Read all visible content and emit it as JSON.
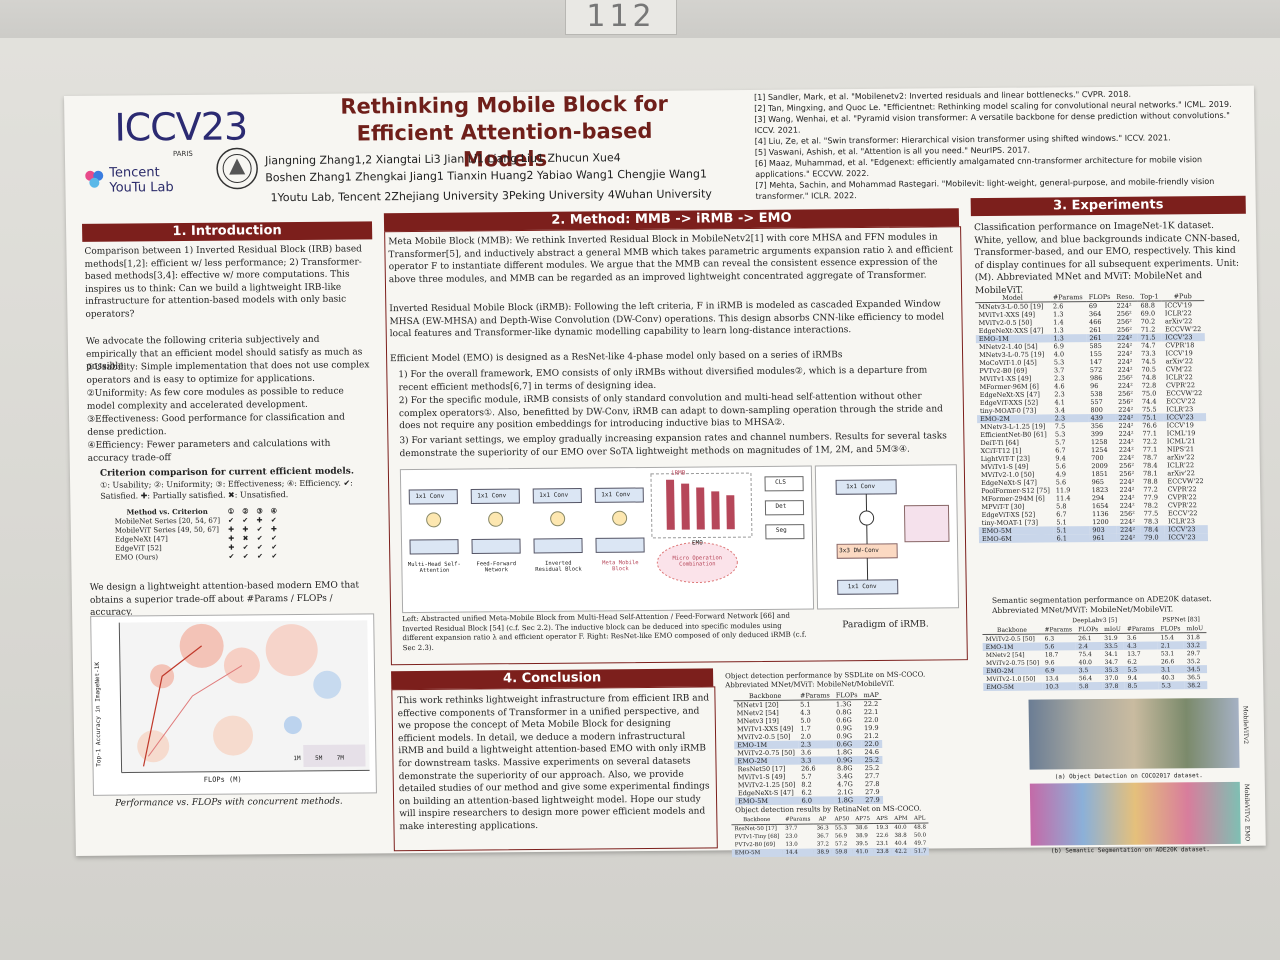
{
  "header": {
    "conference": "ICCV23",
    "city": "PARIS",
    "org_logo": "Tencent YouTu Lab",
    "title_line1": "Rethinking Mobile Block for",
    "title_line2": "Efficient Attention-based Models",
    "authors_line1": "Jiangning Zhang1,2   Xiangtai Li3   Jian Li1   Liang Liu1   Zhucun Xue4",
    "authors_line2": "Boshen Zhang1   Zhengkai Jiang1   Tianxin Huang2   Yabiao Wang1   Chengjie Wang1",
    "affiliations": "1Youtu Lab, Tencent   2Zhejiang University   3Peking University   4Wuhan University",
    "references": [
      "[1] Sandler, Mark, et al. \"Mobilenetv2: Inverted residuals and linear bottlenecks.\" CVPR. 2018.",
      "[2] Tan, Mingxing, and Quoc Le. \"Efficientnet: Rethinking model scaling for convolutional neural networks.\" ICML. 2019.",
      "[3] Wang, Wenhai, et al. \"Pyramid vision transformer: A versatile backbone for dense prediction without convolutions.\" ICCV. 2021.",
      "[4] Liu, Ze, et al. \"Swin transformer: Hierarchical vision transformer using shifted windows.\" ICCV. 2021.",
      "[5] Vaswani, Ashish, et al. \"Attention is all you need.\" NeurIPS. 2017.",
      "[6] Maaz, Muhammad, et al. \"Edgenext: efficiently amalgamated cnn-transformer architecture for mobile vision applications.\" ECCVW. 2022.",
      "[7] Mehta, Sachin, and Mohammad Rastegari. \"Mobilevit: light-weight, general-purpose, and mobile-friendly vision transformer.\" ICLR. 2022."
    ]
  },
  "booth_number": "112",
  "intro": {
    "heading": "1. Introduction",
    "p1": "Comparison between 1) Inverted Residual Block (IRB) based methods[1,2]: efficient w/ less performance; 2) Transformer-based methods[3,4]: effective w/ more computations. This inspires us to think: Can we build a lightweight IRB-like infrastructure for attention-based models with only basic operators?",
    "p2": "We advocate the following criteria subjectively and empirically that an efficient model should satisfy as much as possible:",
    "c1": "①Usability: Simple implementation that does not use complex operators and is easy to optimize for applications.",
    "c2": "②Uniformity: As few core modules as possible to reduce model complexity and accelerated development.",
    "c3": "③Effectiveness: Good performance for classification and dense prediction.",
    "c4": "④Efficiency: Fewer parameters and calculations with accuracy trade-off",
    "crit_title": "Criterion comparison for current efficient models.",
    "crit_legend": "①: Usability; ②: Uniformity; ③: Effectiveness; ④: Efficiency. ✔: Satisfied. ✚: Partially satisfied. ✖: Unsatisfied.",
    "crit_cols": [
      "Method vs. Criterion",
      "①",
      "②",
      "③",
      "④"
    ],
    "crit_rows": [
      [
        "MobileNet Series [20, 54, 67]",
        "✔",
        "✔",
        "✚",
        "✔"
      ],
      [
        "MobileViT Series [49, 50, 67]",
        "✚",
        "✚",
        "✔",
        "✚"
      ],
      [
        "EdgeNeXt [47]",
        "✚",
        "✖",
        "✔",
        "✔"
      ],
      [
        "EdgeViT [52]",
        "✚",
        "✔",
        "✔",
        "✔"
      ],
      [
        "EMO (Ours)",
        "✔",
        "✔",
        "✔",
        "✔"
      ]
    ],
    "p3": "We design a lightweight attention-based modern EMO that obtains a superior trade-off about #Params / FLOPs / accuracy.",
    "plot_ylabel": "Top-1 Accuracy in ImageNet-1K",
    "plot_xlabel": "FLOPs (M)",
    "plot_caption": "Performance vs. FLOPs with concurrent methods.",
    "plot_legend": [
      "1M",
      "5M",
      "7M"
    ]
  },
  "method": {
    "heading": "2. Method: MMB -> iRMB -> EMO",
    "p1": "Meta Mobile Block (MMB): We rethink Inverted Residual Block in MobileNetv2[1] with core MHSA and FFN modules in Transformer[5], and inductively abstract a general MMB which takes parametric arguments expansion ratio λ and efficient operator F to instantiate different modules. We argue that the MMB can reveal the consistent essence expression of the above three modules, and MMB can be regarded as an improved lightweight concentrated aggregate of Transformer.",
    "p2": "Inverted Residual Mobile Block (iRMB): Following the left criteria, F in iRMB is modeled as cascaded Expanded Window MHSA (EW-MHSA) and Depth-Wise Convolution (DW-Conv) operations. This design absorbs CNN-like efficiency to model local features and Transformer-like dynamic modelling capability to learn long-distance interactions.",
    "p3": "Efficient Model (EMO) is designed as a ResNet-like 4-phase model only based on a series of iRMBs",
    "p3a": "1) For the overall framework, EMO consists of only iRMBs without diversified modules②, which is a departure from recent efficient methods[6,7] in terms of designing idea.",
    "p3b": "2) For the specific module, iRMB consists of only standard convolution and multi-head self-attention without other complex operators①. Also, benefitted by DW-Conv, iRMB can adapt to down-sampling operation through the stride and does not require any position embeddings for introducing inductive bias to MHSA②.",
    "p3c": "3) For variant settings, we employ gradually increasing expansion rates and channel numbers. Results for several tasks demonstrate the superiority of our EMO over SoTA lightweight methods on magnitudes of 1M, 2M, and 5M③④.",
    "fig_blocks": [
      "Multi-Head Self-Attention",
      "Feed-Forward Network",
      "Inverted Residual Block",
      "Meta Mobile Block"
    ],
    "fig_conv": "1x1 Conv",
    "fig_dw": "3x3 DW-Conv",
    "fig_emo": "EMO",
    "fig_irmb": "iRMB",
    "fig_tasks": [
      "CLS",
      "Det",
      "Seg"
    ],
    "fig_cloud": "Micro Operation Combination",
    "fig_caption": "Left: Abstracted unified Meta-Mobile Block from Multi-Head Self-Attention / Feed-Forward Network [66] and Inverted Residual Block [54] (c.f. Sec 2.2). The inductive block can be deduced into specific modules using different expansion ratio λ and efficient operator F. Right: ResNet-like EMO composed of only deduced iRMB (c.f. Sec 2.3).",
    "fig_right_caption": "Paradigm of iRMB."
  },
  "conclusion": {
    "heading": "4. Conclusion",
    "text": "This work rethinks lightweight infrastructure from efficient IRB and effective components of Transformer in a unified perspective, and we propose the concept of Meta Mobile Block for designing efficient models. In detail, we deduce a modern infrastructural iRMB and build a lightweight attention-based EMO with only iRMB for downstream tasks. Massive experiments on several datasets demonstrate the superiority of our approach. Also, we provide detailed studies of our method and give some experimental findings on building an attention-based lightweight model. Hope our study will inspire researchers to design more power efficient models and make interesting applications."
  },
  "experiments": {
    "heading": "3. Experiments",
    "intro": "Classification performance on ImageNet-1K dataset. White, yellow, and blue backgrounds indicate CNN-based, Transformer-based, and our EMO, respectively. This kind of display continues for all subsequent experiments. Unit: (M). Abbreviated MNet and MViT: MobileNet and MobileViT.",
    "cls_cols": [
      "Model",
      "#Params",
      "FLOPs",
      "Reso.",
      "Top-1",
      "#Pub"
    ],
    "cls_groups": [
      [
        [
          "MNetv3-L-0.50 [19]",
          "2.6",
          "69",
          "224²",
          "68.8",
          "ICCV'19"
        ],
        [
          "MViTv1-XXS [49]",
          "1.3",
          "364",
          "256²",
          "69.0",
          "ICLR'22"
        ],
        [
          "MViTv2-0.5 [50]",
          "1.4",
          "466",
          "256²",
          "70.2",
          "arXiv'22"
        ],
        [
          "EdgeNeXt-XXS [47]",
          "1.3",
          "261",
          "256²",
          "71.2",
          "ECCVW'22"
        ],
        [
          "EMO-1M",
          "1.3",
          "261",
          "224²",
          "71.5",
          "ICCV'23"
        ]
      ],
      [
        [
          "MNetv2-1.40 [54]",
          "6.9",
          "585",
          "224²",
          "74.7",
          "CVPR'18"
        ],
        [
          "MNetv3-L-0.75 [19]",
          "4.0",
          "155",
          "224²",
          "73.3",
          "ICCV'19"
        ],
        [
          "MoCoViT-1.0 [45]",
          "5.3",
          "147",
          "224²",
          "74.5",
          "arXiv'22"
        ],
        [
          "PVTv2-B0 [69]",
          "3.7",
          "572",
          "224²",
          "70.5",
          "CVM'22"
        ],
        [
          "MViTv1-XS [49]",
          "2.3",
          "986",
          "256²",
          "74.8",
          "ICLR'22"
        ],
        [
          "MFormer-96M [6]",
          "4.6",
          "96",
          "224²",
          "72.8",
          "CVPR'22"
        ],
        [
          "EdgeNeXt-XS [47]",
          "2.3",
          "538",
          "256²",
          "75.0",
          "ECCVW'22"
        ],
        [
          "EdgeViT-XXS [52]",
          "4.1",
          "557",
          "256²",
          "74.4",
          "ECCV'22"
        ],
        [
          "tiny-MOAT-0 [73]",
          "3.4",
          "800",
          "224²",
          "75.5",
          "ICLR'23"
        ],
        [
          "EMO-2M",
          "2.3",
          "439",
          "224²",
          "75.1",
          "ICCV'23"
        ]
      ],
      [
        [
          "MNetv3-L-1.25 [19]",
          "7.5",
          "356",
          "224²",
          "76.6",
          "ICCV'19"
        ],
        [
          "EfficientNet-B0 [61]",
          "5.3",
          "399",
          "224²",
          "77.1",
          "ICML'19"
        ],
        [
          "DeiT-Ti [64]",
          "5.7",
          "1258",
          "224²",
          "72.2",
          "ICML'21"
        ],
        [
          "XCiT-T12 [1]",
          "6.7",
          "1254",
          "224²",
          "77.1",
          "NIPS'21"
        ],
        [
          "LightViT-T [23]",
          "9.4",
          "700",
          "224²",
          "78.7",
          "arXiv'22"
        ],
        [
          "MViTv1-S [49]",
          "5.6",
          "2009",
          "256²",
          "78.4",
          "ICLR'22"
        ],
        [
          "MViTv2-1.0 [50]",
          "4.9",
          "1851",
          "256²",
          "78.1",
          "arXiv'22"
        ],
        [
          "EdgeNeXt-S [47]",
          "5.6",
          "965",
          "224²",
          "78.8",
          "ECCVW'22"
        ],
        [
          "PoolFormer-S12 [75]",
          "11.9",
          "1823",
          "224²",
          "77.2",
          "CVPR'22"
        ],
        [
          "MFormer-294M [6]",
          "11.4",
          "294",
          "224²",
          "77.9",
          "CVPR'22"
        ],
        [
          "MPViT-T [30]",
          "5.8",
          "1654",
          "224²",
          "78.2",
          "CVPR'22"
        ],
        [
          "EdgeViT-XS [52]",
          "6.7",
          "1136",
          "256²",
          "77.5",
          "ECCV'22"
        ],
        [
          "tiny-MOAT-1 [73]",
          "5.1",
          "1200",
          "224²",
          "78.3",
          "ICLR'23"
        ],
        [
          "EMO-5M",
          "5.1",
          "903",
          "224²",
          "78.4",
          "ICCV'23"
        ],
        [
          "EMO-6M",
          "6.1",
          "961",
          "224²",
          "79.0",
          "ICCV'23"
        ]
      ]
    ],
    "seg_title": "Semantic segmentation performance on ADE20K dataset. Abbreviated MNet/MViT: MobileNet/MobileViT.",
    "seg_cols": [
      "Backbone",
      "#Params",
      "FLOPs",
      "mIoU",
      "#Params",
      "FLOPs",
      "mIoU"
    ],
    "seg_groups": [
      "DeepLabv3 [5]",
      "PSPNet [83]"
    ],
    "seg_rows": [
      [
        "MViTv2-0.5 [50]",
        "6.3",
        "26.1",
        "31.9",
        "3.6",
        "15.4",
        "31.8"
      ],
      [
        "EMO-1M",
        "5.6",
        "2.4",
        "33.5",
        "4.3",
        "2.1",
        "33.2"
      ],
      [
        "MNetv2 [54]",
        "18.7",
        "75.4",
        "34.1",
        "13.7",
        "53.1",
        "29.7"
      ],
      [
        "MViTv2-0.75 [50]",
        "9.6",
        "40.0",
        "34.7",
        "6.2",
        "26.6",
        "35.2"
      ],
      [
        "EMO-2M",
        "6.9",
        "3.5",
        "35.3",
        "5.5",
        "3.1",
        "34.5"
      ],
      [
        "MViTv2-1.0 [50]",
        "13.4",
        "56.4",
        "37.0",
        "9.4",
        "40.3",
        "36.5"
      ],
      [
        "EMO-5M",
        "10.3",
        "5.8",
        "37.8",
        "8.5",
        "5.3",
        "38.2"
      ]
    ],
    "det_title": "Object detection performance by SSDLite on MS-COCO. Abbreviated MNet/MViT: MobileNet/MobileViT.",
    "det_cols": [
      "Backbone",
      "#Params",
      "FLOPs",
      "mAP"
    ],
    "det_rows": [
      [
        "MNetv1 [20]",
        "5.1",
        "1.3G",
        "22.2"
      ],
      [
        "MNetv2 [54]",
        "4.3",
        "0.8G",
        "22.1"
      ],
      [
        "MNetv3 [19]",
        "5.0",
        "0.6G",
        "22.0"
      ],
      [
        "MViTv1-XXS [49]",
        "1.7",
        "0.9G",
        "19.9"
      ],
      [
        "MViTv2-0.5 [50]",
        "2.0",
        "0.9G",
        "21.2"
      ],
      [
        "EMO-1M",
        "2.3",
        "0.6G",
        "22.0"
      ],
      [
        "MViTv2-0.75 [50]",
        "3.6",
        "1.8G",
        "24.6"
      ],
      [
        "EMO-2M",
        "3.3",
        "0.9G",
        "25.2"
      ],
      [
        "ResNet50 [17]",
        "26.6",
        "8.8G",
        "25.2"
      ],
      [
        "MViTv1-S [49]",
        "5.7",
        "3.4G",
        "27.7"
      ],
      [
        "MViTv2-1.25 [50]",
        "8.2",
        "4.7G",
        "27.8"
      ],
      [
        "EdgeNeXt-S [47]",
        "6.2",
        "2.1G",
        "27.9"
      ],
      [
        "EMO-5M",
        "6.0",
        "1.8G",
        "27.9"
      ]
    ],
    "det2_title": "Object detection results by RetinaNet on MS-COCO.",
    "det2_cols": [
      "Backbone",
      "#Params",
      "AP",
      "AP50",
      "AP75",
      "APS",
      "APM",
      "APL"
    ],
    "det2_rows": [
      [
        "ResNet-50 [17]",
        "37.7",
        "36.3",
        "55.3",
        "38.6",
        "19.3",
        "40.0",
        "48.8"
      ],
      [
        "PVTv1-Tiny [68]",
        "23.0",
        "36.7",
        "56.9",
        "38.9",
        "22.6",
        "38.8",
        "50.0"
      ],
      [
        "PVTv2-B0 [69]",
        "13.0",
        "37.2",
        "57.2",
        "39.5",
        "23.1",
        "40.4",
        "49.7"
      ],
      [
        "EMO-5M",
        "14.4",
        "38.9",
        "59.8",
        "41.0",
        "23.8",
        "42.2",
        "51.7"
      ]
    ],
    "vis_caption_a": "(a) Object Detection on COCO2017 dataset.",
    "vis_caption_b": "(b) Semantic Segmentation on ADE20K dataset.",
    "vis_side_a": "MobileViTv2",
    "vis_side_b": "MobileViTv2",
    "vis_side_c": "EMO"
  },
  "colors": {
    "accent": "#7c1f1c",
    "title": "#6f1f1a",
    "emo_row": "#c9d6ea",
    "iccv": "#2b2a72"
  }
}
